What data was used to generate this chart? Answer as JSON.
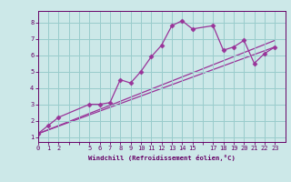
{
  "xlabel": "Windchill (Refroidissement éolien,°C)",
  "bg_color": "#cce8e8",
  "line_color": "#993399",
  "grid_color": "#99cccc",
  "axis_color": "#660066",
  "text_color": "#660066",
  "xticks": [
    0,
    1,
    2,
    5,
    6,
    7,
    8,
    9,
    10,
    11,
    12,
    13,
    14,
    15,
    17,
    18,
    19,
    20,
    21,
    22,
    23
  ],
  "yticks": [
    1,
    2,
    3,
    4,
    5,
    6,
    7,
    8
  ],
  "xlim": [
    0,
    24
  ],
  "ylim": [
    0.7,
    8.7
  ],
  "curve_x": [
    0,
    1,
    2,
    5,
    6,
    7,
    8,
    9,
    10,
    11,
    12,
    13,
    14,
    15,
    17,
    18,
    19,
    20,
    21,
    22,
    23
  ],
  "curve_y": [
    1.2,
    1.7,
    2.2,
    3.0,
    3.0,
    3.1,
    4.5,
    4.3,
    5.0,
    5.9,
    6.6,
    7.8,
    8.1,
    7.6,
    7.8,
    6.3,
    6.5,
    6.9,
    5.5,
    6.1,
    6.5
  ],
  "line1_x": [
    0,
    23
  ],
  "line1_y": [
    1.2,
    6.5
  ],
  "line2_x": [
    0,
    23
  ],
  "line2_y": [
    1.2,
    6.9
  ],
  "marker": "D",
  "markersize": 2.5,
  "linewidth": 0.9
}
